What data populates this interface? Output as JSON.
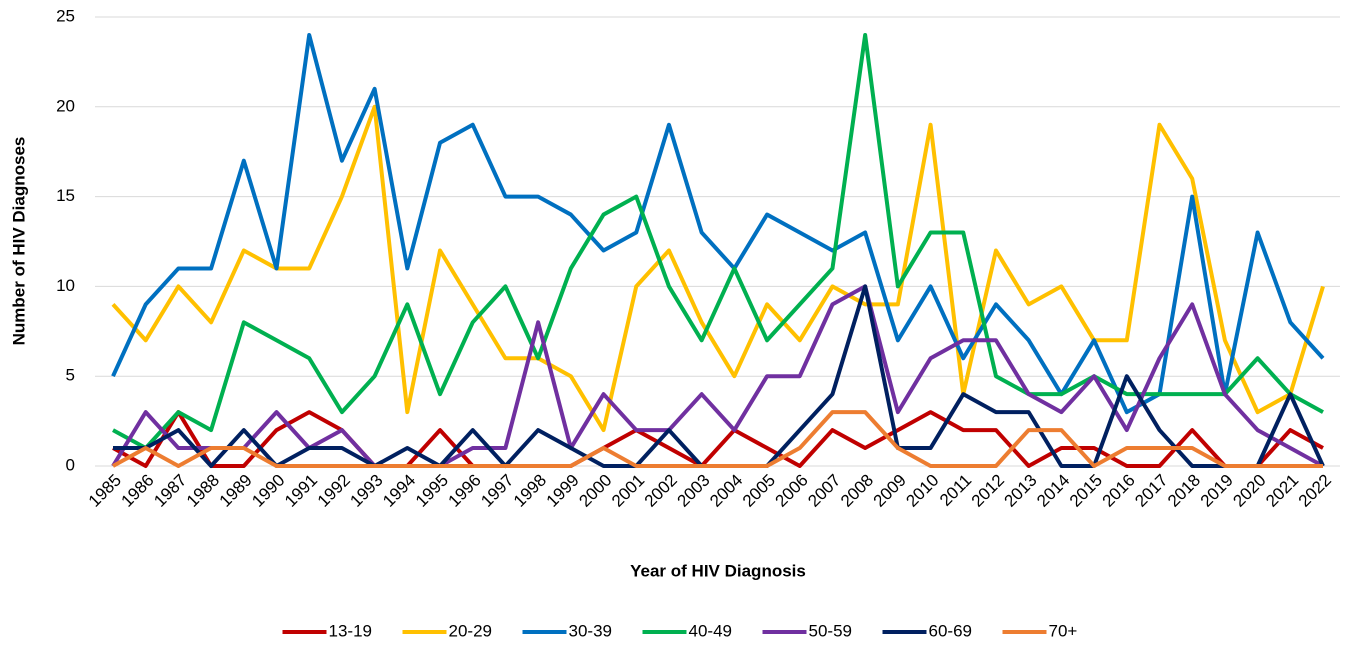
{
  "chart_data": {
    "type": "line",
    "y_label": "Number of HIV Diagnoses",
    "x_label": "Year of HIV Diagnosis",
    "categories": [
      "1985",
      "1986",
      "1987",
      "1988",
      "1989",
      "1990",
      "1991",
      "1992",
      "1993",
      "1994",
      "1995",
      "1996",
      "1997",
      "1998",
      "1999",
      "2000",
      "2001",
      "2002",
      "2003",
      "2004",
      "2005",
      "2006",
      "2007",
      "2008",
      "2009",
      "2010",
      "2011",
      "2012",
      "2013",
      "2014",
      "2015",
      "2016",
      "2017",
      "2018",
      "2019",
      "2020",
      "2021",
      "2022"
    ],
    "ylim": [
      0,
      25
    ],
    "yticks": [
      0,
      5,
      10,
      15,
      20,
      25
    ],
    "grid": true,
    "legend": "bottom",
    "series": [
      {
        "name": "13-19",
        "color": "#c00000",
        "values": [
          1,
          0,
          3,
          0,
          0,
          2,
          3,
          2,
          0,
          0,
          2,
          0,
          0,
          0,
          0,
          1,
          2,
          1,
          0,
          2,
          1,
          0,
          2,
          1,
          2,
          3,
          2,
          2,
          0,
          1,
          1,
          0,
          0,
          2,
          0,
          0,
          2,
          1
        ]
      },
      {
        "name": "20-29",
        "color": "#ffc000",
        "values": [
          9,
          7,
          10,
          8,
          12,
          11,
          11,
          15,
          20,
          3,
          12,
          9,
          6,
          6,
          5,
          2,
          10,
          12,
          8,
          5,
          9,
          7,
          10,
          9,
          9,
          19,
          4,
          12,
          9,
          10,
          7,
          7,
          19,
          16,
          7,
          3,
          4,
          10
        ]
      },
      {
        "name": "30-39",
        "color": "#0070c0",
        "values": [
          5,
          9,
          11,
          11,
          17,
          11,
          24,
          17,
          21,
          11,
          18,
          19,
          15,
          15,
          14,
          12,
          13,
          19,
          13,
          11,
          14,
          13,
          12,
          13,
          7,
          10,
          6,
          9,
          7,
          4,
          7,
          3,
          4,
          15,
          4,
          13,
          8,
          6
        ]
      },
      {
        "name": "40-49",
        "color": "#00b050",
        "values": [
          2,
          1,
          3,
          2,
          8,
          7,
          6,
          3,
          5,
          9,
          4,
          8,
          10,
          6,
          11,
          14,
          15,
          10,
          7,
          11,
          7,
          9,
          11,
          24,
          10,
          13,
          13,
          5,
          4,
          4,
          5,
          4,
          4,
          4,
          4,
          6,
          4,
          3
        ]
      },
      {
        "name": "50-59",
        "color": "#7030a0",
        "values": [
          0,
          3,
          1,
          1,
          1,
          3,
          1,
          2,
          0,
          0,
          0,
          1,
          1,
          8,
          1,
          4,
          2,
          2,
          4,
          2,
          5,
          5,
          9,
          10,
          3,
          6,
          7,
          7,
          4,
          3,
          5,
          2,
          6,
          9,
          4,
          2,
          1,
          0
        ]
      },
      {
        "name": "60-69",
        "color": "#002060",
        "values": [
          1,
          1,
          2,
          0,
          2,
          0,
          1,
          1,
          0,
          1,
          0,
          2,
          0,
          2,
          1,
          0,
          0,
          2,
          0,
          0,
          0,
          2,
          4,
          10,
          1,
          1,
          4,
          3,
          3,
          0,
          0,
          5,
          2,
          0,
          0,
          0,
          4,
          0
        ]
      },
      {
        "name": "70+",
        "color": "#ed7d31",
        "values": [
          0,
          1,
          0,
          1,
          1,
          0,
          0,
          0,
          0,
          0,
          0,
          0,
          0,
          0,
          0,
          1,
          0,
          0,
          0,
          0,
          0,
          1,
          3,
          3,
          1,
          0,
          0,
          0,
          2,
          2,
          0,
          1,
          1,
          1,
          0,
          0,
          0,
          0
        ]
      }
    ]
  }
}
